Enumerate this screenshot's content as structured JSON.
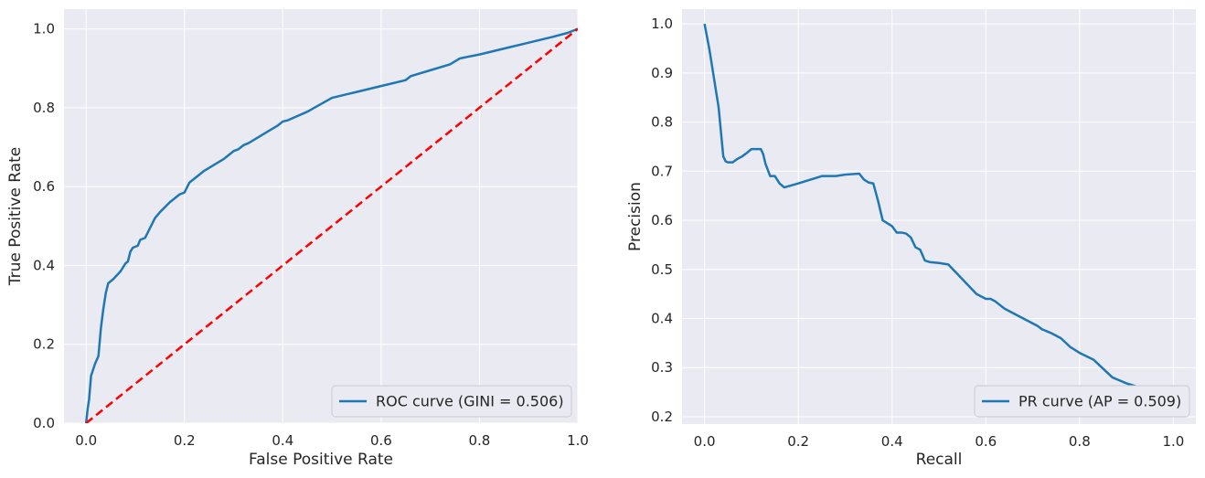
{
  "chart_data": [
    {
      "type": "line",
      "title": "",
      "xlabel": "False Positive Rate",
      "ylabel": "True Positive Rate",
      "xlim": [
        -0.045,
        1.0
      ],
      "ylim": [
        0.0,
        1.05
      ],
      "xticks": [
        0.0,
        0.2,
        0.4,
        0.6,
        0.8,
        1.0
      ],
      "yticks": [
        0.0,
        0.2,
        0.4,
        0.6,
        0.8,
        1.0
      ],
      "grid": true,
      "legend_position": "lower-right",
      "colors": {
        "background": "#eaeaf2",
        "grid": "#ffffff",
        "curve": "#1f77b4",
        "reference": "#ff0000"
      },
      "series": [
        {
          "name": "ROC curve (GINI = 0.506)",
          "style": "solid",
          "x": [
            0.0,
            0.003,
            0.006,
            0.01,
            0.018,
            0.025,
            0.03,
            0.035,
            0.04,
            0.045,
            0.055,
            0.07,
            0.08,
            0.085,
            0.09,
            0.095,
            0.105,
            0.11,
            0.12,
            0.13,
            0.14,
            0.15,
            0.17,
            0.19,
            0.2,
            0.21,
            0.22,
            0.24,
            0.26,
            0.28,
            0.29,
            0.3,
            0.31,
            0.32,
            0.33,
            0.35,
            0.37,
            0.39,
            0.4,
            0.41,
            0.45,
            0.5,
            0.55,
            0.6,
            0.65,
            0.66,
            0.7,
            0.74,
            0.76,
            0.8,
            0.85,
            0.9,
            0.95,
            0.98,
            1.0
          ],
          "y": [
            0.0,
            0.035,
            0.06,
            0.12,
            0.15,
            0.17,
            0.24,
            0.29,
            0.33,
            0.355,
            0.365,
            0.385,
            0.405,
            0.41,
            0.435,
            0.445,
            0.45,
            0.465,
            0.47,
            0.495,
            0.52,
            0.535,
            0.56,
            0.58,
            0.585,
            0.61,
            0.62,
            0.64,
            0.655,
            0.67,
            0.68,
            0.69,
            0.695,
            0.705,
            0.71,
            0.725,
            0.74,
            0.755,
            0.765,
            0.768,
            0.79,
            0.825,
            0.84,
            0.855,
            0.87,
            0.88,
            0.895,
            0.91,
            0.925,
            0.935,
            0.95,
            0.965,
            0.98,
            0.99,
            1.0
          ]
        },
        {
          "name": "",
          "style": "dashed",
          "x": [
            0.0,
            1.0
          ],
          "y": [
            0.0,
            1.0
          ]
        }
      ]
    },
    {
      "type": "line",
      "title": "",
      "xlabel": "Recall",
      "ylabel": "Precision",
      "xlim": [
        -0.048,
        1.048
      ],
      "ylim": [
        0.185,
        1.03
      ],
      "xticks": [
        0.0,
        0.2,
        0.4,
        0.6,
        0.8,
        1.0
      ],
      "yticks": [
        0.2,
        0.3,
        0.4,
        0.5,
        0.6,
        0.7,
        0.8,
        0.9,
        1.0
      ],
      "grid": true,
      "legend_position": "lower-right",
      "colors": {
        "background": "#eaeaf2",
        "grid": "#ffffff",
        "curve": "#1f77b4"
      },
      "series": [
        {
          "name": "PR curve (AP = 0.509)",
          "style": "solid",
          "x": [
            0.0,
            0.01,
            0.02,
            0.03,
            0.035,
            0.04,
            0.045,
            0.05,
            0.06,
            0.07,
            0.08,
            0.09,
            0.1,
            0.11,
            0.12,
            0.125,
            0.13,
            0.14,
            0.15,
            0.16,
            0.17,
            0.2,
            0.25,
            0.28,
            0.3,
            0.33,
            0.34,
            0.35,
            0.36,
            0.37,
            0.38,
            0.4,
            0.41,
            0.42,
            0.43,
            0.44,
            0.45,
            0.46,
            0.47,
            0.48,
            0.5,
            0.52,
            0.55,
            0.58,
            0.6,
            0.61,
            0.62,
            0.64,
            0.66,
            0.68,
            0.69,
            0.7,
            0.71,
            0.72,
            0.74,
            0.76,
            0.78,
            0.8,
            0.83,
            0.85,
            0.87,
            0.88,
            0.9,
            0.92,
            0.93,
            0.94,
            0.95
          ],
          "y": [
            1.0,
            0.95,
            0.89,
            0.83,
            0.78,
            0.73,
            0.72,
            0.718,
            0.718,
            0.725,
            0.73,
            0.737,
            0.745,
            0.745,
            0.745,
            0.735,
            0.715,
            0.69,
            0.69,
            0.675,
            0.667,
            0.675,
            0.69,
            0.69,
            0.693,
            0.695,
            0.683,
            0.677,
            0.675,
            0.64,
            0.6,
            0.588,
            0.575,
            0.575,
            0.573,
            0.565,
            0.545,
            0.54,
            0.518,
            0.515,
            0.513,
            0.51,
            0.48,
            0.45,
            0.44,
            0.44,
            0.435,
            0.42,
            0.41,
            0.4,
            0.395,
            0.39,
            0.385,
            0.378,
            0.37,
            0.36,
            0.342,
            0.33,
            0.316,
            0.298,
            0.28,
            0.276,
            0.268,
            0.262,
            0.26,
            0.25,
            0.245
          ]
        }
      ]
    }
  ]
}
